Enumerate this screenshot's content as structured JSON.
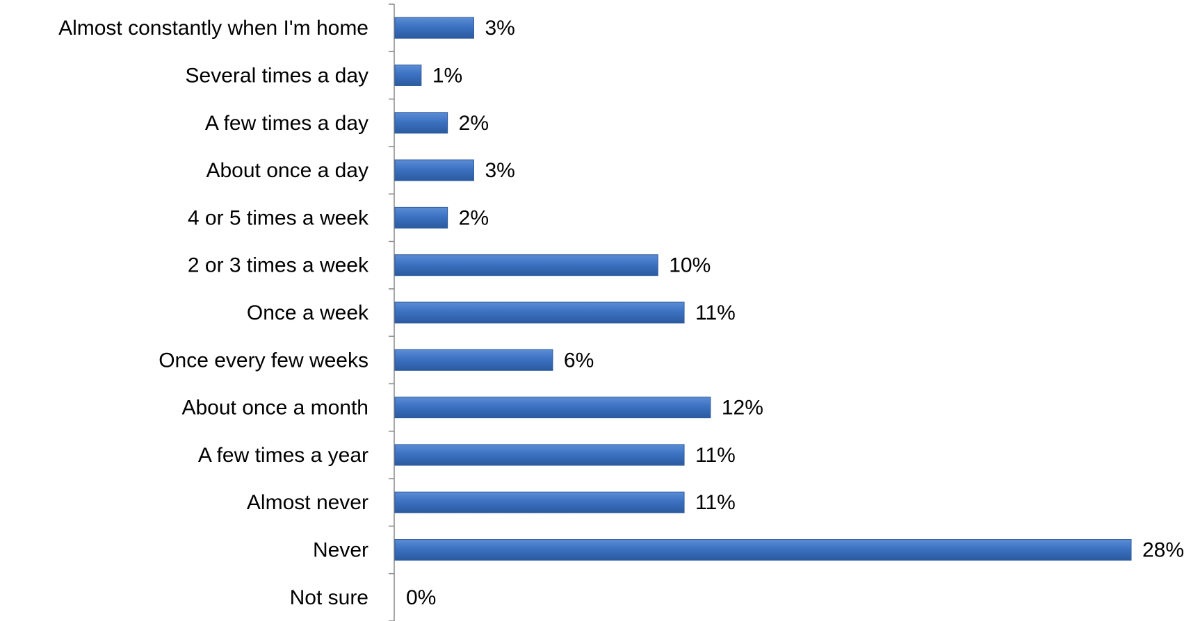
{
  "chart_data": {
    "type": "bar",
    "orientation": "horizontal",
    "categories": [
      "Almost constantly when I'm home",
      "Several times a day",
      "A few times a day",
      "About once a day",
      "4 or 5 times a week",
      "2 or 3 times a week",
      "Once a week",
      "Once every few weeks",
      "About once a month",
      "A few times a year",
      "Almost never",
      "Never",
      "Not sure"
    ],
    "values": [
      3,
      1,
      2,
      3,
      2,
      10,
      11,
      6,
      12,
      11,
      11,
      28,
      0
    ],
    "data_labels": [
      "3%",
      "1%",
      "2%",
      "3%",
      "2%",
      "10%",
      "11%",
      "6%",
      "12%",
      "11%",
      "11%",
      "28%",
      "0%"
    ],
    "unit": "%",
    "xlim": [
      0,
      28
    ],
    "grid": false,
    "legend": "none",
    "bar_color": "#3A6FBE",
    "bar_edge_color": "#2E5A9C",
    "axis_color": "#888888"
  }
}
